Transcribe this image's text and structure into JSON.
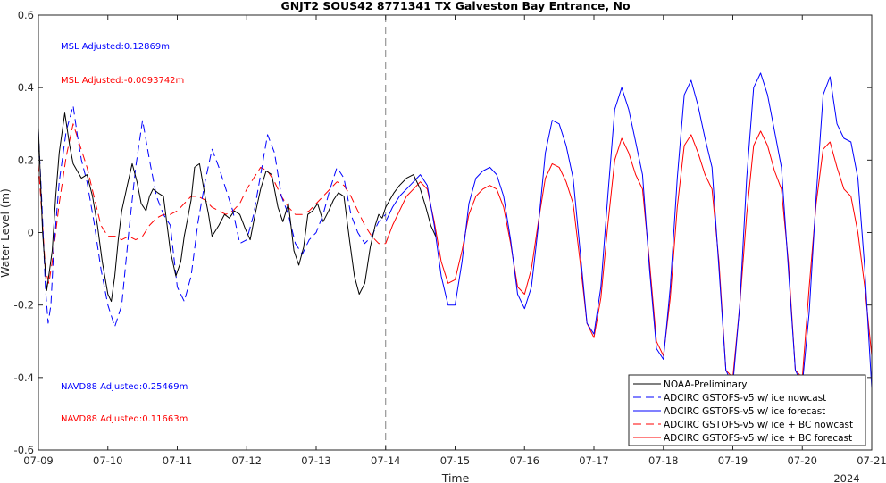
{
  "chart_data": {
    "type": "line",
    "title": "GNJT2 SOUS42 8771341 TX Galveston Bay Entrance, No",
    "xlabel": "Time",
    "ylabel": "Water Level (m)",
    "year_label": "2024",
    "xlim": [
      "07-09",
      "07-21"
    ],
    "ylim": [
      -0.6,
      0.6
    ],
    "x_ticks": [
      "07-09",
      "07-10",
      "07-11",
      "07-12",
      "07-13",
      "07-14",
      "07-15",
      "07-16",
      "07-17",
      "07-18",
      "07-19",
      "07-20",
      "07-21"
    ],
    "y_ticks": [
      "0.6",
      "0.4",
      "0.2",
      "0",
      "-0.2",
      "-0.4",
      "-0.6"
    ],
    "nowcast_forecast_divider": "07-14",
    "grid": false,
    "legend_position": "bottom-right",
    "annotations": [
      {
        "text": "MSL Adjusted:0.12869m",
        "color": "#0000ff"
      },
      {
        "text": "MSL Adjusted:-0.0093742m",
        "color": "#ff0000"
      },
      {
        "text": "NAVD88 Adjusted:0.25469m",
        "color": "#0000ff"
      },
      {
        "text": "NAVD88 Adjusted:0.11663m",
        "color": "#ff0000"
      }
    ],
    "series": [
      {
        "name": "NOAA-Preliminary",
        "color": "#000000",
        "dash": "solid",
        "x": [
          9.0,
          9.06,
          9.12,
          9.2,
          9.25,
          9.3,
          9.38,
          9.45,
          9.5,
          9.56,
          9.62,
          9.7,
          9.78,
          9.85,
          9.92,
          10.0,
          10.05,
          10.1,
          10.15,
          10.2,
          10.28,
          10.35,
          10.42,
          10.48,
          10.55,
          10.6,
          10.65,
          10.72,
          10.8,
          10.9,
          10.98,
          11.05,
          11.1,
          11.15,
          11.2,
          11.25,
          11.32,
          11.4,
          11.45,
          11.5,
          11.6,
          11.68,
          11.75,
          11.82,
          11.9,
          11.98,
          12.05,
          12.12,
          12.2,
          12.28,
          12.36,
          12.45,
          12.52,
          12.6,
          12.68,
          12.75,
          12.82,
          12.88,
          12.95,
          13.02,
          13.1,
          13.18,
          13.25,
          13.32,
          13.4,
          13.48,
          13.55,
          13.62,
          13.7,
          13.78,
          13.85,
          13.9,
          13.95,
          14.0,
          14.06,
          14.12,
          14.2,
          14.3,
          14.4,
          14.5,
          14.58,
          14.65,
          14.72
        ],
        "y": [
          0.29,
          0.0,
          -0.16,
          -0.05,
          0.1,
          0.22,
          0.33,
          0.24,
          0.19,
          0.17,
          0.15,
          0.16,
          0.1,
          0.02,
          -0.08,
          -0.17,
          -0.19,
          -0.12,
          -0.02,
          0.06,
          0.13,
          0.19,
          0.14,
          0.08,
          0.06,
          0.1,
          0.12,
          0.11,
          0.1,
          -0.05,
          -0.12,
          -0.08,
          -0.01,
          0.04,
          0.09,
          0.18,
          0.19,
          0.1,
          0.05,
          -0.01,
          0.02,
          0.05,
          0.04,
          0.06,
          0.05,
          0.01,
          -0.02,
          0.05,
          0.12,
          0.17,
          0.16,
          0.07,
          0.03,
          0.08,
          -0.05,
          -0.09,
          -0.04,
          0.05,
          0.06,
          0.08,
          0.03,
          0.06,
          0.09,
          0.11,
          0.1,
          -0.02,
          -0.12,
          -0.17,
          -0.14,
          -0.04,
          0.02,
          0.05,
          0.04,
          0.07,
          0.09,
          0.11,
          0.13,
          0.15,
          0.16,
          0.12,
          0.07,
          0.02,
          -0.01
        ]
      },
      {
        "name": "ADCIRC GSTOFS-v5  w/ ice nowcast",
        "color": "#0000ff",
        "dash": "dashed",
        "x": [
          9.0,
          9.05,
          9.1,
          9.14,
          9.18,
          9.22,
          9.3,
          9.4,
          9.5,
          9.56,
          9.62,
          9.7,
          9.8,
          9.9,
          10.0,
          10.1,
          10.2,
          10.3,
          10.4,
          10.5,
          10.6,
          10.7,
          10.8,
          10.9,
          11.0,
          11.1,
          11.2,
          11.3,
          11.4,
          11.5,
          11.6,
          11.7,
          11.8,
          11.9,
          12.0,
          12.1,
          12.2,
          12.3,
          12.4,
          12.5,
          12.6,
          12.7,
          12.8,
          12.9,
          13.0,
          13.1,
          13.2,
          13.3,
          13.4,
          13.5,
          13.6,
          13.7,
          13.8,
          13.9,
          14.0
        ],
        "y": [
          0.28,
          0.08,
          -0.15,
          -0.25,
          -0.2,
          -0.05,
          0.14,
          0.28,
          0.35,
          0.27,
          0.2,
          0.14,
          0.03,
          -0.1,
          -0.2,
          -0.26,
          -0.2,
          0.0,
          0.18,
          0.31,
          0.2,
          0.1,
          0.05,
          0.02,
          -0.15,
          -0.19,
          -0.12,
          0.03,
          0.14,
          0.23,
          0.18,
          0.12,
          0.06,
          -0.03,
          -0.02,
          0.05,
          0.16,
          0.27,
          0.22,
          0.1,
          0.05,
          -0.03,
          -0.06,
          -0.02,
          0.0,
          0.05,
          0.12,
          0.18,
          0.15,
          0.05,
          0.0,
          -0.03,
          -0.01,
          0.03,
          0.05
        ]
      },
      {
        "name": "ADCIRC GSTOFS-v5  w/ ice forecast",
        "color": "#0000ff",
        "dash": "solid",
        "x": [
          14.0,
          14.1,
          14.2,
          14.3,
          14.4,
          14.5,
          14.6,
          14.7,
          14.8,
          14.9,
          15.0,
          15.1,
          15.2,
          15.3,
          15.4,
          15.5,
          15.6,
          15.7,
          15.8,
          15.9,
          16.0,
          16.1,
          16.2,
          16.3,
          16.4,
          16.5,
          16.6,
          16.7,
          16.8,
          16.9,
          17.0,
          17.1,
          17.2,
          17.3,
          17.4,
          17.5,
          17.6,
          17.7,
          17.8,
          17.9,
          18.0,
          18.1,
          18.2,
          18.3,
          18.4,
          18.5,
          18.6,
          18.7,
          18.8,
          18.9,
          19.0,
          19.1,
          19.2,
          19.3,
          19.4,
          19.5,
          19.6,
          19.7,
          19.8,
          19.9,
          20.0,
          20.1,
          20.2,
          20.3,
          20.4,
          20.5,
          20.6,
          20.7,
          20.8,
          20.9,
          21.0
        ],
        "y": [
          0.03,
          0.07,
          0.1,
          0.12,
          0.14,
          0.16,
          0.13,
          0.02,
          -0.12,
          -0.2,
          -0.2,
          -0.08,
          0.08,
          0.15,
          0.17,
          0.18,
          0.16,
          0.1,
          -0.02,
          -0.17,
          -0.21,
          -0.15,
          0.02,
          0.22,
          0.31,
          0.3,
          0.24,
          0.15,
          -0.05,
          -0.25,
          -0.28,
          -0.15,
          0.1,
          0.34,
          0.4,
          0.34,
          0.25,
          0.16,
          -0.1,
          -0.32,
          -0.35,
          -0.15,
          0.15,
          0.38,
          0.42,
          0.35,
          0.26,
          0.18,
          -0.1,
          -0.38,
          -0.42,
          -0.2,
          0.15,
          0.4,
          0.44,
          0.38,
          0.28,
          0.18,
          -0.1,
          -0.38,
          -0.42,
          -0.22,
          0.1,
          0.38,
          0.43,
          0.3,
          0.26,
          0.25,
          0.15,
          -0.1,
          -0.43
        ]
      },
      {
        "name": "ADCIRC GSTOFS-v5  w/ ice + BC nowcast",
        "color": "#ff0000",
        "dash": "dashed",
        "x": [
          9.0,
          9.05,
          9.1,
          9.15,
          9.2,
          9.3,
          9.4,
          9.5,
          9.6,
          9.7,
          9.8,
          9.9,
          10.0,
          10.1,
          10.2,
          10.3,
          10.4,
          10.5,
          10.6,
          10.7,
          10.8,
          10.9,
          11.0,
          11.1,
          11.2,
          11.3,
          11.4,
          11.5,
          11.6,
          11.7,
          11.8,
          11.9,
          12.0,
          12.1,
          12.2,
          12.3,
          12.4,
          12.5,
          12.6,
          12.7,
          12.8,
          12.9,
          13.0,
          13.1,
          13.2,
          13.3,
          13.4,
          13.5,
          13.6,
          13.7,
          13.8,
          13.9,
          14.0
        ],
        "y": [
          0.19,
          0.05,
          -0.1,
          -0.14,
          -0.08,
          0.08,
          0.21,
          0.3,
          0.24,
          0.18,
          0.1,
          0.02,
          -0.01,
          -0.01,
          -0.02,
          -0.01,
          -0.02,
          -0.01,
          0.02,
          0.04,
          0.05,
          0.05,
          0.06,
          0.08,
          0.1,
          0.1,
          0.09,
          0.07,
          0.06,
          0.05,
          0.06,
          0.08,
          0.12,
          0.15,
          0.18,
          0.17,
          0.14,
          0.1,
          0.07,
          0.05,
          0.05,
          0.06,
          0.08,
          0.1,
          0.12,
          0.14,
          0.13,
          0.1,
          0.06,
          0.02,
          -0.01,
          -0.03,
          -0.03
        ]
      },
      {
        "name": "ADCIRC GSTOFS-v5  w/ ice + BC forecast",
        "color": "#ff0000",
        "dash": "solid",
        "x": [
          14.0,
          14.1,
          14.2,
          14.3,
          14.4,
          14.5,
          14.6,
          14.7,
          14.8,
          14.9,
          15.0,
          15.1,
          15.2,
          15.3,
          15.4,
          15.5,
          15.6,
          15.7,
          15.8,
          15.9,
          16.0,
          16.1,
          16.2,
          16.3,
          16.4,
          16.5,
          16.6,
          16.7,
          16.8,
          16.9,
          17.0,
          17.1,
          17.2,
          17.3,
          17.4,
          17.5,
          17.6,
          17.7,
          17.8,
          17.9,
          18.0,
          18.1,
          18.2,
          18.3,
          18.4,
          18.5,
          18.6,
          18.7,
          18.8,
          18.9,
          19.0,
          19.1,
          19.2,
          19.3,
          19.4,
          19.5,
          19.6,
          19.7,
          19.8,
          19.9,
          20.0,
          20.1,
          20.2,
          20.3,
          20.4,
          20.5,
          20.6,
          20.7,
          20.8,
          20.9,
          21.0
        ],
        "y": [
          -0.03,
          0.02,
          0.06,
          0.1,
          0.12,
          0.14,
          0.12,
          0.03,
          -0.08,
          -0.14,
          -0.13,
          -0.05,
          0.05,
          0.1,
          0.12,
          0.13,
          0.12,
          0.07,
          -0.03,
          -0.15,
          -0.17,
          -0.1,
          0.03,
          0.15,
          0.19,
          0.18,
          0.14,
          0.08,
          -0.08,
          -0.25,
          -0.29,
          -0.18,
          0.02,
          0.2,
          0.26,
          0.22,
          0.16,
          0.12,
          -0.08,
          -0.3,
          -0.34,
          -0.18,
          0.07,
          0.24,
          0.27,
          0.22,
          0.16,
          0.12,
          -0.08,
          -0.38,
          -0.4,
          -0.2,
          0.05,
          0.24,
          0.28,
          0.24,
          0.17,
          0.12,
          -0.08,
          -0.38,
          -0.4,
          -0.15,
          0.08,
          0.23,
          0.25,
          0.18,
          0.12,
          0.1,
          0.0,
          -0.15,
          -0.34
        ]
      }
    ]
  }
}
